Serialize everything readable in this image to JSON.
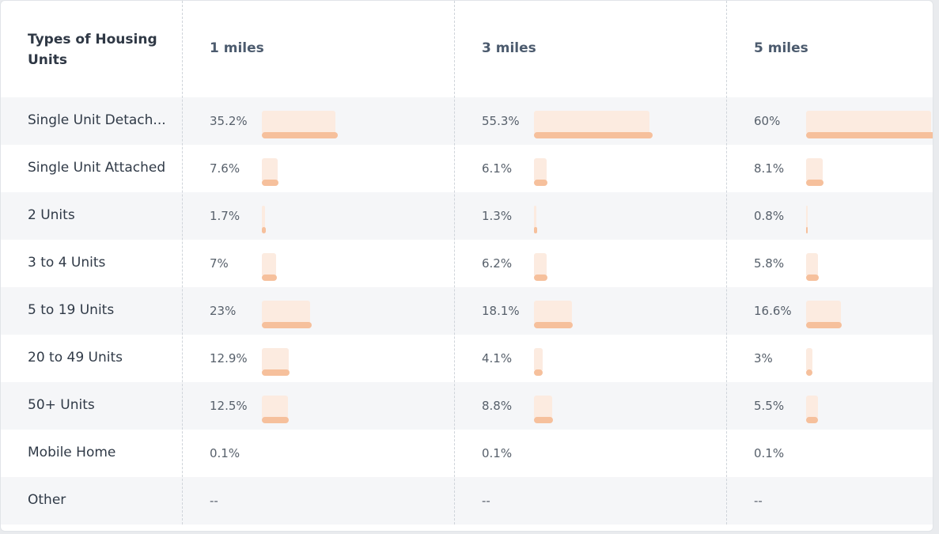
{
  "table": {
    "header": {
      "label": "Types of Housing Units",
      "columns": [
        "1 miles",
        "3 miles",
        "5 miles"
      ]
    },
    "rows": [
      {
        "label": "Single Unit Detach...",
        "values": [
          "35.2%",
          "55.3%",
          "60%"
        ],
        "fractions": [
          0.352,
          0.553,
          0.6
        ]
      },
      {
        "label": "Single Unit Attached",
        "values": [
          "7.6%",
          "6.1%",
          "8.1%"
        ],
        "fractions": [
          0.076,
          0.061,
          0.081
        ]
      },
      {
        "label": "2 Units",
        "values": [
          "1.7%",
          "1.3%",
          "0.8%"
        ],
        "fractions": [
          0.017,
          0.013,
          0.008
        ]
      },
      {
        "label": "3 to 4 Units",
        "values": [
          "7%",
          "6.2%",
          "5.8%"
        ],
        "fractions": [
          0.07,
          0.062,
          0.058
        ]
      },
      {
        "label": "5 to 19 Units",
        "values": [
          "23%",
          "18.1%",
          "16.6%"
        ],
        "fractions": [
          0.23,
          0.181,
          0.166
        ]
      },
      {
        "label": "20 to 49 Units",
        "values": [
          "12.9%",
          "4.1%",
          "3%"
        ],
        "fractions": [
          0.129,
          0.041,
          0.03
        ]
      },
      {
        "label": "50+ Units",
        "values": [
          "12.5%",
          "8.8%",
          "5.5%"
        ],
        "fractions": [
          0.125,
          0.088,
          0.055
        ]
      },
      {
        "label": "Mobile Home",
        "values": [
          "0.1%",
          "0.1%",
          "0.1%"
        ],
        "fractions": [
          0.001,
          0.001,
          0.001
        ]
      },
      {
        "label": "Other",
        "values": [
          "--",
          "--",
          "--"
        ],
        "fractions": [
          0,
          0,
          0
        ]
      }
    ]
  },
  "colors": {
    "bar_fill": "#fcebe0",
    "bar_line": "#f6c09c",
    "row_shade": "#f5f6f8"
  }
}
